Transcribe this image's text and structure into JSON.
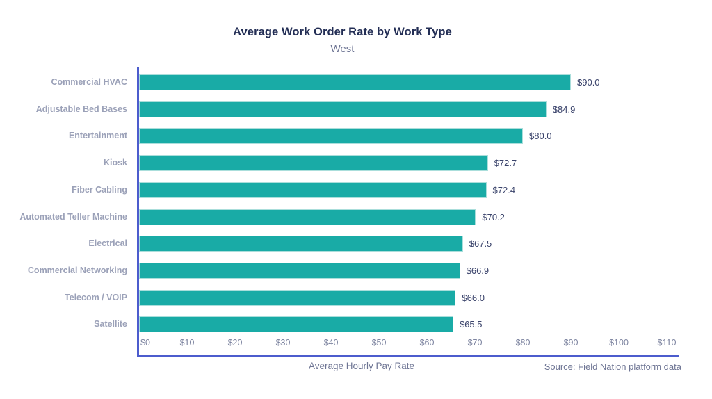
{
  "chart_data": {
    "type": "bar",
    "orientation": "horizontal",
    "title": "Average Work Order Rate by Work Type",
    "subtitle": "West",
    "xlabel": "Average Hourly Pay Rate",
    "source": "Source: Field Nation platform data",
    "categories": [
      "Commercial HVAC",
      "Adjustable Bed Bases",
      "Entertainment",
      "Kiosk",
      "Fiber Cabling",
      "Automated Teller Machine",
      "Electrical",
      "Commercial Networking",
      "Telecom / VOIP",
      "Satellite"
    ],
    "values": [
      90.0,
      84.9,
      80.0,
      72.7,
      72.4,
      70.2,
      67.5,
      66.9,
      66.0,
      65.5
    ],
    "value_labels": [
      "$90.0",
      "$84.9",
      "$80.0",
      "$72.7",
      "$72.4",
      "$70.2",
      "$67.5",
      "$66.9",
      "$66.0",
      "$65.5"
    ],
    "x_ticks": {
      "values": [
        0,
        10,
        20,
        30,
        40,
        50,
        60,
        70,
        80,
        90,
        100,
        110
      ],
      "labels": [
        "$0",
        "$10",
        "$20",
        "$30",
        "$40",
        "$50",
        "$60",
        "$70",
        "$80",
        "$90",
        "$100",
        "$110"
      ]
    },
    "xlim": [
      0,
      112.7
    ],
    "grid": false,
    "legend": "none",
    "bar_color": "#19aba6",
    "axis_color": "#4c5ccd",
    "background_color": "#ffffff"
  }
}
